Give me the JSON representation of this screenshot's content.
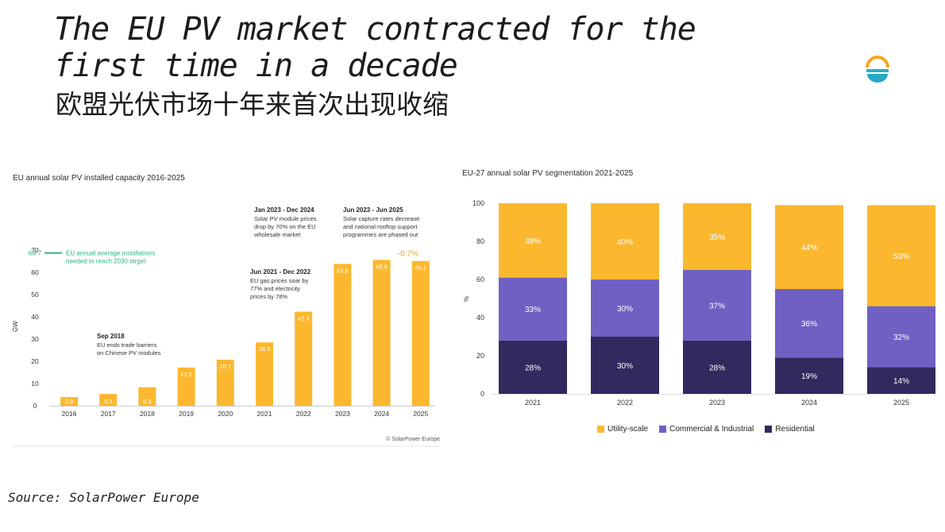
{
  "title_en": "The EU PV market contracted for the first time in a decade",
  "title_zh": "欧盟光伏市场十年来首次出现收缩",
  "source": "Source: SolarPower Europe",
  "colors": {
    "yellow": "#fbb82e",
    "purple": "#7060c4",
    "navy": "#32295e",
    "green": "#2eb386",
    "orange": "#f2a516"
  },
  "chart_data": [
    {
      "type": "bar",
      "title": "EU annual solar PV installed capacity 2016-2025",
      "ylabel": "GW",
      "ylim": [
        0,
        70
      ],
      "yticks": [
        "0",
        "10",
        "20",
        "30",
        "40",
        "50",
        "60",
        "70"
      ],
      "categories": [
        "2016",
        "2017",
        "2018",
        "2019",
        "2020",
        "2021",
        "2022",
        "2023",
        "2024",
        "2025"
      ],
      "values": [
        3.9,
        5.3,
        8.3,
        17.2,
        20.7,
        28.5,
        42.3,
        63.8,
        65.6,
        65.1
      ],
      "value_labels": [
        "3.9",
        "5.3",
        "8.3",
        "17.2",
        "20.7",
        "28.5",
        "42.3",
        "63.8",
        "65.6",
        "65.1"
      ],
      "target": {
        "value": 68.7,
        "value_label": "68.7",
        "label_line1": "EU annual average installations",
        "label_line2": "needed to reach 2030 target"
      },
      "change_label": "-0.7%",
      "annotations": [
        {
          "year": "2018",
          "title": "Sep 2018",
          "lines": [
            "EU ends trade barriers",
            "on Chinese PV modules"
          ]
        },
        {
          "year": "2021",
          "title": "Jun 2021 - Dec 2022",
          "lines": [
            "EU gas prices soar by",
            "77% and electricity",
            "prices by 78%"
          ]
        },
        {
          "year": "2023",
          "title": "Jan 2023 - Dec 2024",
          "lines": [
            "Solar PV module prices",
            "drop by 70% on the EU",
            "wholesale market"
          ]
        },
        {
          "year": "2024",
          "title": "Jun 2023 - Jun 2025",
          "lines": [
            "Solar capture rates decrease",
            "and national rooftop support",
            "programmes are phased out"
          ]
        }
      ],
      "credit": "© SolarPower Europe"
    },
    {
      "type": "bar",
      "stacked": true,
      "title": "EU-27 annual solar PV segmentation 2021-2025",
      "ylabel": "%",
      "ylim": [
        0,
        100
      ],
      "yticks": [
        "0",
        "20",
        "40",
        "60",
        "80",
        "100"
      ],
      "categories": [
        "2021",
        "2022",
        "2023",
        "2024",
        "2025"
      ],
      "series": [
        {
          "name": "Residential",
          "values": [
            28,
            30,
            28,
            19,
            14
          ],
          "labels": [
            "28%",
            "30%",
            "28%",
            "19%",
            "14%"
          ]
        },
        {
          "name": "Commercial & Industrial",
          "values": [
            33,
            30,
            37,
            36,
            32
          ],
          "labels": [
            "33%",
            "30%",
            "37%",
            "36%",
            "32%"
          ]
        },
        {
          "name": "Utility-scale",
          "values": [
            39,
            40,
            35,
            44,
            53
          ],
          "labels": [
            "39%",
            "40%",
            "35%",
            "44%",
            "53%"
          ]
        }
      ],
      "legend": [
        "Utility-scale",
        "Commercial & Industrial",
        "Residential"
      ]
    }
  ]
}
